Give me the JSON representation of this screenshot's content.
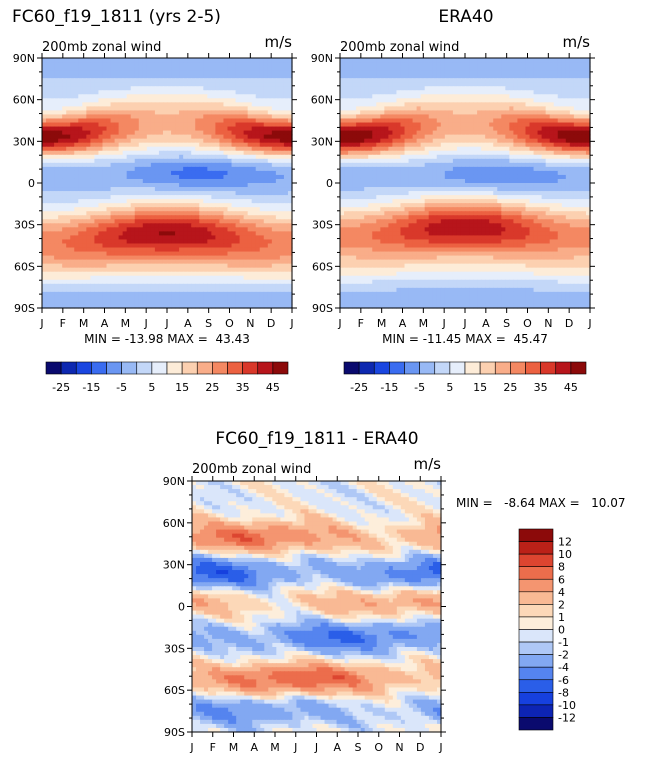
{
  "chart_data": [
    {
      "type": "heatmap",
      "title": "FC60_f19_1811 (yrs 2-5)",
      "subtitle": "200mb zonal wind",
      "units": "m/s",
      "x_tick_labels": [
        "J",
        "F",
        "M",
        "A",
        "M",
        "J",
        "J",
        "A",
        "S",
        "O",
        "N",
        "D",
        "J"
      ],
      "y_tick_labels": [
        "90N",
        "60N",
        "30N",
        "0",
        "30S",
        "60S",
        "90S"
      ],
      "y_values": [
        90,
        60,
        30,
        0,
        -30,
        -60,
        -90
      ],
      "min_label": "MIN = -13.98 MAX =  43.43",
      "min": -13.98,
      "max": 43.43,
      "colorbar_levels": [
        -25,
        -20,
        -15,
        -10,
        -5,
        0,
        5,
        10,
        15,
        20,
        25,
        30,
        35,
        40,
        45
      ],
      "colorbar_labels": [
        "-25",
        "-15",
        "-5",
        "5",
        "15",
        "25",
        "35",
        "45"
      ],
      "field": {
        "jet_nh": {
          "lat": 33,
          "amp_winter": 48,
          "amp_summer": 22
        },
        "jet_sh": {
          "lat": -36,
          "amp_winter": 45,
          "amp_summer": 28
        },
        "tropical_easterly": {
          "lat": 8,
          "amp": -14,
          "peak_month": 7.5
        }
      }
    },
    {
      "type": "heatmap",
      "title": "ERA40",
      "subtitle": "200mb zonal wind",
      "units": "m/s",
      "x_tick_labels": [
        "J",
        "F",
        "M",
        "A",
        "M",
        "J",
        "J",
        "A",
        "S",
        "O",
        "N",
        "D",
        "J"
      ],
      "y_tick_labels": [
        "90N",
        "60N",
        "30N",
        "0",
        "30S",
        "60S",
        "90S"
      ],
      "y_values": [
        90,
        60,
        30,
        0,
        -30,
        -60,
        -90
      ],
      "min_label": "MIN = -11.45 MAX =  45.47",
      "min": -11.45,
      "max": 45.47,
      "colorbar_levels": [
        -25,
        -20,
        -15,
        -10,
        -5,
        0,
        5,
        10,
        15,
        20,
        25,
        30,
        35,
        40,
        45
      ],
      "colorbar_labels": [
        "-25",
        "-15",
        "-5",
        "5",
        "15",
        "25",
        "35",
        "45"
      ],
      "field": {
        "jet_nh": {
          "lat": 33,
          "amp_winter": 50,
          "amp_summer": 22
        },
        "jet_sh": {
          "lat": -32,
          "amp_winter": 44,
          "amp_summer": 27
        },
        "tropical_easterly": {
          "lat": 6,
          "amp": -12,
          "peak_month": 7.5
        }
      }
    },
    {
      "type": "heatmap",
      "title": "FC60_f19_1811 - ERA40",
      "subtitle": "200mb zonal wind",
      "units": "m/s",
      "x_tick_labels": [
        "J",
        "F",
        "M",
        "A",
        "M",
        "J",
        "J",
        "A",
        "S",
        "O",
        "N",
        "D",
        "J"
      ],
      "y_tick_labels": [
        "90N",
        "60N",
        "30N",
        "0",
        "30S",
        "60S",
        "90S"
      ],
      "y_values": [
        90,
        60,
        30,
        0,
        -30,
        -60,
        -90
      ],
      "min_label": "MIN =   -8.64 MAX =   10.07",
      "min": -8.64,
      "max": 10.07,
      "colorbar_levels": [
        -12,
        -10,
        -8,
        -6,
        -4,
        -2,
        -1,
        0,
        1,
        2,
        4,
        6,
        8,
        10,
        12
      ],
      "colorbar_labels": [
        "12",
        "10",
        "8",
        "6",
        "4",
        "2",
        "1",
        "0",
        "-1",
        "-2",
        "-4",
        "-6",
        "-8",
        "-10",
        "-12"
      ],
      "field": {
        "bands": [
          {
            "lat": 50,
            "amp": 7
          },
          {
            "lat": 24,
            "amp": -7
          },
          {
            "lat": 3,
            "amp": 4
          },
          {
            "lat": -22,
            "amp": -6
          },
          {
            "lat": -52,
            "amp": 8
          },
          {
            "lat": -75,
            "amp": -4
          }
        ]
      }
    }
  ]
}
